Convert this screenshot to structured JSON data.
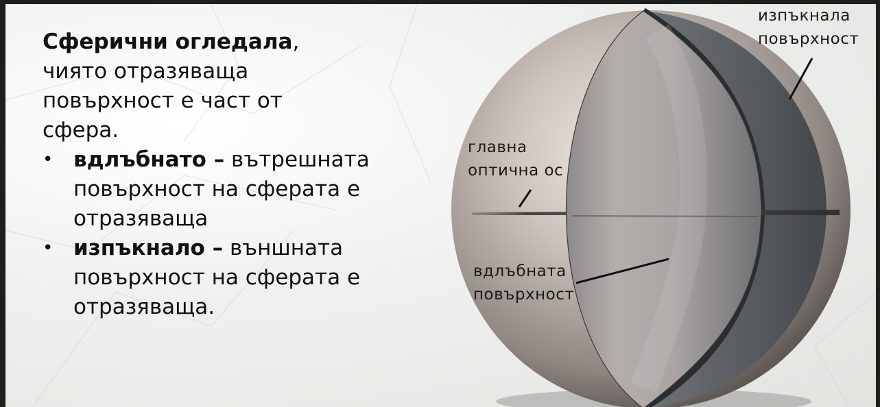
{
  "text": {
    "intro_bold": "Сферични огледала",
    "intro_rest": ", чиято отразяваща повърхност е част от сфера.",
    "bullets": [
      {
        "marker": "•",
        "bold": "вдлъбнато –",
        "rest": " вътрешната повърхност на сферата е отразяваща"
      },
      {
        "marker": "•",
        "bold": "изпъкнало –",
        "rest": " външната повърхност на сферата е отразяваща."
      }
    ]
  },
  "diagram": {
    "labels": {
      "convex_line1": "изпъкнала",
      "convex_line2": "повърхност",
      "axis_line1": "главна",
      "axis_line2": "оптична ос",
      "concave_line1": "вдлъбната",
      "concave_line2": "повърхност"
    }
  }
}
